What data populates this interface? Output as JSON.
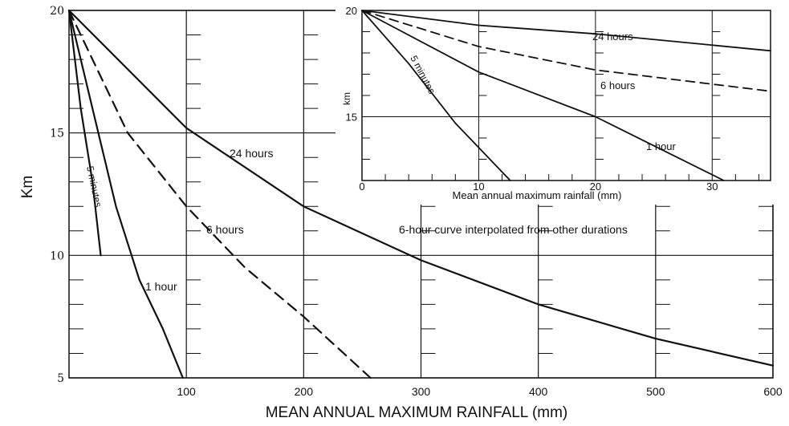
{
  "chart_data": [
    {
      "type": "line",
      "xlabel": "MEAN ANNUAL MAXIMUM RAINFALL (mm)",
      "ylabel": "Km",
      "xlim": [
        0,
        600
      ],
      "ylim": [
        5,
        20
      ],
      "x_ticks": [
        "100",
        "200",
        "300",
        "400",
        "500",
        "600"
      ],
      "y_ticks": [
        "20",
        "15",
        "10",
        "5"
      ],
      "grid": true,
      "annotation": "6-hour curve interpolated from other durations",
      "series": [
        {
          "name": "5 minutes",
          "style": "solid",
          "points": [
            [
              0,
              20
            ],
            [
              10,
              16
            ],
            [
              20,
              13
            ],
            [
              27,
              10
            ]
          ]
        },
        {
          "name": "1 hour",
          "style": "solid",
          "points": [
            [
              0,
              20
            ],
            [
              20,
              16
            ],
            [
              40,
              12
            ],
            [
              60,
              9
            ],
            [
              80,
              7
            ],
            [
              97,
              5
            ]
          ]
        },
        {
          "name": "6 hours",
          "style": "dashed",
          "points": [
            [
              0,
              20
            ],
            [
              50,
              15
            ],
            [
              100,
              12
            ],
            [
              150,
              9.5
            ],
            [
              200,
              7.5
            ],
            [
              257,
              5
            ]
          ]
        },
        {
          "name": "24 hours",
          "style": "solid",
          "points": [
            [
              0,
              20
            ],
            [
              100,
              15.2
            ],
            [
              200,
              12
            ],
            [
              300,
              9.8
            ],
            [
              400,
              8
            ],
            [
              500,
              6.6
            ],
            [
              600,
              5.5
            ]
          ]
        }
      ]
    },
    {
      "type": "line",
      "xlabel": "Mean annual maximum rainfall (mm)",
      "ylabel": "km",
      "xlim": [
        0,
        35
      ],
      "ylim": [
        12,
        20
      ],
      "x_ticks": [
        "0",
        "10",
        "20",
        "30"
      ],
      "y_ticks": [
        "20",
        "15"
      ],
      "grid": true,
      "series": [
        {
          "name": "5 minutes",
          "style": "solid",
          "points": [
            [
              0,
              20
            ],
            [
              4,
              17.5
            ],
            [
              8,
              14.7
            ],
            [
              12.7,
              12
            ]
          ]
        },
        {
          "name": "1 hour",
          "style": "solid",
          "points": [
            [
              0,
              20
            ],
            [
              10,
              17.1
            ],
            [
              20,
              15
            ],
            [
              31,
              12
            ]
          ]
        },
        {
          "name": "6 hours",
          "style": "dashed",
          "points": [
            [
              0,
              20
            ],
            [
              10,
              18.3
            ],
            [
              20,
              17.2
            ],
            [
              35,
              16.2
            ]
          ]
        },
        {
          "name": "24 hours",
          "style": "solid",
          "points": [
            [
              0,
              20
            ],
            [
              10,
              19.3
            ],
            [
              20,
              18.9
            ],
            [
              35,
              18.1
            ]
          ]
        }
      ]
    }
  ]
}
